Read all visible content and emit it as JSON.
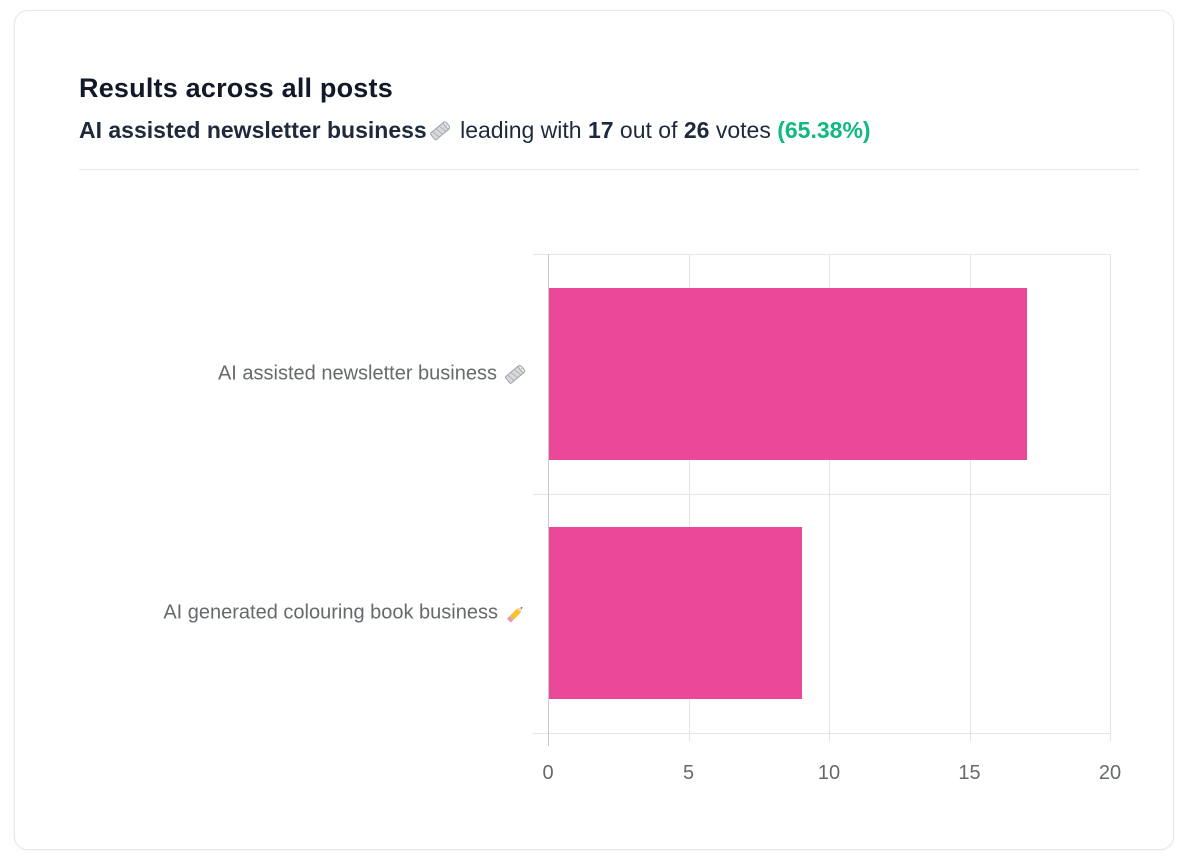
{
  "header": {
    "title": "Results across all posts",
    "subtitle_parts": [
      {
        "text": "AI assisted newsletter business",
        "style": "bold-dark"
      },
      {
        "icon": "newspaper-icon"
      },
      {
        "text": " leading with ",
        "style": "regular"
      },
      {
        "text": "17",
        "style": "bold-dark"
      },
      {
        "text": " out of ",
        "style": "regular"
      },
      {
        "text": "26",
        "style": "bold-dark"
      },
      {
        "text": " votes ",
        "style": "regular"
      },
      {
        "text": "(65.38%)",
        "style": "bold-green"
      }
    ],
    "leading_votes": "17",
    "total_votes": "26",
    "leading_percent": "(65.38%)"
  },
  "colors": {
    "accent_green": "#10b981",
    "bar_pink": "#ec4899",
    "title_text": "#111827",
    "subtitle_text": "#1e293b",
    "axis_text": "#666a6e"
  },
  "chart_data": {
    "type": "bar",
    "orientation": "horizontal",
    "title": "",
    "xlabel": "",
    "ylabel": "",
    "categories": [
      {
        "label": "AI assisted newsletter business",
        "emoji": "🗞️",
        "icon": "newspaper-icon"
      },
      {
        "label": "AI generated colouring book business",
        "emoji": "✏️",
        "icon": "pencil-icon"
      }
    ],
    "values": [
      17,
      9
    ],
    "xlim": [
      0,
      20
    ],
    "xticks": [
      0,
      5,
      10,
      15,
      20
    ],
    "grid": true,
    "legend": false,
    "bar_color": "#ec4899"
  }
}
